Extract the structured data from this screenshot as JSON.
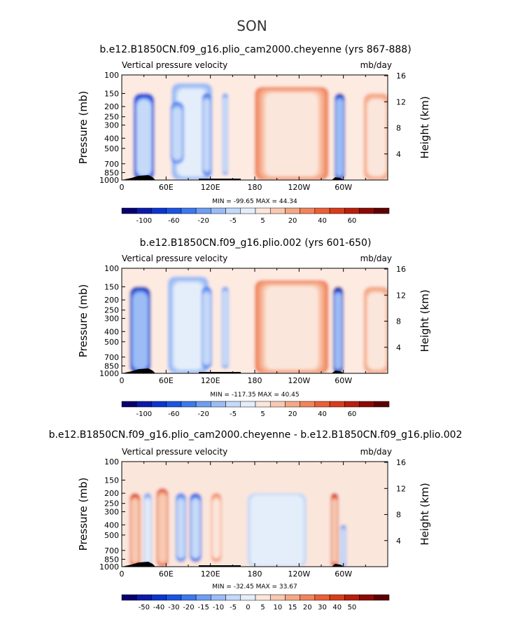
{
  "figure": {
    "season": "SON"
  },
  "panels": [
    {
      "title": "b.e12.B1850CN.f09_g16.plio_cam2000.cheyenne (yrs 867-888)",
      "variable": "Vertical pressure velocity",
      "units": "mb/day",
      "stats": "MIN = -99.65   MAX =  44.34"
    },
    {
      "title": "b.e12.B1850CN.f09_g16.plio.002 (yrs 601-650)",
      "variable": "Vertical pressure velocity",
      "units": "mb/day",
      "stats": "MIN = -117.35   MAX =  40.45"
    },
    {
      "title": "b.e12.B1850CN.f09_g16.plio_cam2000.cheyenne - b.e12.B1850CN.f09_g16.plio.002",
      "variable": "Vertical pressure velocity",
      "units": "mb/day",
      "stats": "MIN = -32.45   MAX =  33.67"
    }
  ],
  "axes": {
    "ylabel": "Pressure (mb)",
    "y2label": "Height (km)",
    "xticks": [
      "0",
      "60E",
      "120E",
      "180",
      "120W",
      "60W"
    ],
    "yticks": [
      "100",
      "150",
      "200",
      "250",
      "300",
      "400",
      "500",
      "700",
      "850",
      "1000"
    ],
    "y2ticks": [
      "16",
      "12",
      "8",
      "4"
    ]
  },
  "colorbars": [
    {
      "labels": [
        "-100",
        "-60",
        "-20",
        "-5",
        "5",
        "20",
        "40",
        "60"
      ],
      "colors": [
        "#08006e",
        "#0b1aa8",
        "#0c35d0",
        "#1a54e0",
        "#3d78ec",
        "#6e9ef2",
        "#9bbcf5",
        "#c5d9f8",
        "#e4eefa",
        "#fbe6dc",
        "#f8c9b1",
        "#f5a886",
        "#f1845c",
        "#ec5f36",
        "#d73d1b",
        "#b81f0c",
        "#8c0a04",
        "#5e0000"
      ]
    },
    {
      "labels": [
        "-100",
        "-60",
        "-20",
        "-5",
        "5",
        "20",
        "40",
        "60"
      ],
      "colors": [
        "#08006e",
        "#0b1aa8",
        "#0c35d0",
        "#1a54e0",
        "#3d78ec",
        "#6e9ef2",
        "#9bbcf5",
        "#c5d9f8",
        "#e4eefa",
        "#fbe6dc",
        "#f8c9b1",
        "#f5a886",
        "#f1845c",
        "#ec5f36",
        "#d73d1b",
        "#b81f0c",
        "#8c0a04",
        "#5e0000"
      ]
    },
    {
      "labels": [
        "-50",
        "-40",
        "-30",
        "-20",
        "-15",
        "-10",
        "-5",
        "0",
        "5",
        "10",
        "15",
        "20",
        "30",
        "40",
        "50"
      ],
      "colors": [
        "#08006e",
        "#0b1aa8",
        "#0c35d0",
        "#1a54e0",
        "#3d78ec",
        "#6e9ef2",
        "#9bbcf5",
        "#c5d9f8",
        "#e4eefa",
        "#fbe6dc",
        "#f8c9b1",
        "#f5a886",
        "#f1845c",
        "#ec5f36",
        "#d73d1b",
        "#b81f0c",
        "#8c0a04",
        "#5e0000"
      ]
    }
  ],
  "chart_data": [
    {
      "type": "heatmap",
      "title": "b.e12.B1850CN.f09_g16.plio_cam2000.cheyenne (yrs 867-888)",
      "subtitle": "Vertical pressure velocity (mb/day), SON",
      "x_range_deg": [
        0,
        360
      ],
      "y_range_mb": [
        1000,
        100
      ],
      "min": -99.65,
      "max": 44.34,
      "features": [
        {
          "lon": 30,
          "width": 28,
          "pmin": 150,
          "pmax": 1000,
          "value": -60
        },
        {
          "lon": 95,
          "width": 55,
          "pmin": 120,
          "pmax": 1000,
          "value": -25
        },
        {
          "lon": 75,
          "width": 18,
          "pmin": 180,
          "pmax": 700,
          "value": -40
        },
        {
          "lon": 115,
          "width": 12,
          "pmin": 150,
          "pmax": 900,
          "value": -45
        },
        {
          "lon": 140,
          "width": 8,
          "pmin": 150,
          "pmax": 900,
          "value": -35
        },
        {
          "lon": 230,
          "width": 100,
          "pmin": 130,
          "pmax": 1000,
          "value": 30
        },
        {
          "lon": 295,
          "width": 14,
          "pmin": 150,
          "pmax": 1000,
          "value": -70
        },
        {
          "lon": 345,
          "width": 35,
          "pmin": 150,
          "pmax": 1000,
          "value": 25
        }
      ]
    },
    {
      "type": "heatmap",
      "title": "b.e12.B1850CN.f09_g16.plio.002 (yrs 601-650)",
      "subtitle": "Vertical pressure velocity (mb/day), SON",
      "x_range_deg": [
        0,
        360
      ],
      "y_range_mb": [
        1000,
        100
      ],
      "min": -117.35,
      "max": 40.45,
      "features": [
        {
          "lon": 25,
          "width": 28,
          "pmin": 150,
          "pmax": 1000,
          "value": -65
        },
        {
          "lon": 90,
          "width": 55,
          "pmin": 120,
          "pmax": 1000,
          "value": -25
        },
        {
          "lon": 115,
          "width": 14,
          "pmin": 150,
          "pmax": 900,
          "value": -40
        },
        {
          "lon": 140,
          "width": 10,
          "pmin": 150,
          "pmax": 900,
          "value": -35
        },
        {
          "lon": 230,
          "width": 100,
          "pmin": 130,
          "pmax": 1000,
          "value": 30
        },
        {
          "lon": 293,
          "width": 14,
          "pmin": 150,
          "pmax": 1000,
          "value": -75
        },
        {
          "lon": 345,
          "width": 35,
          "pmin": 150,
          "pmax": 1000,
          "value": 25
        }
      ]
    },
    {
      "type": "heatmap",
      "title": "b.e12.B1850CN.f09_g16.plio_cam2000.cheyenne - b.e12.B1850CN.f09_g16.plio.002",
      "subtitle": "Vertical pressure velocity (mb/day), SON, difference",
      "x_range_deg": [
        0,
        360
      ],
      "y_range_mb": [
        1000,
        100
      ],
      "min": -32.45,
      "max": 33.67,
      "features": [
        {
          "lon": 18,
          "width": 14,
          "pmin": 200,
          "pmax": 1000,
          "value": 22
        },
        {
          "lon": 35,
          "width": 10,
          "pmin": 200,
          "pmax": 1000,
          "value": -12
        },
        {
          "lon": 55,
          "width": 16,
          "pmin": 180,
          "pmax": 1000,
          "value": 20
        },
        {
          "lon": 80,
          "width": 14,
          "pmin": 200,
          "pmax": 900,
          "value": -18
        },
        {
          "lon": 100,
          "width": 16,
          "pmin": 200,
          "pmax": 900,
          "value": -22
        },
        {
          "lon": 128,
          "width": 14,
          "pmin": 200,
          "pmax": 900,
          "value": 12
        },
        {
          "lon": 210,
          "width": 80,
          "pmin": 200,
          "pmax": 1000,
          "value": -5
        },
        {
          "lon": 288,
          "width": 10,
          "pmin": 200,
          "pmax": 1000,
          "value": 25
        },
        {
          "lon": 300,
          "width": 8,
          "pmin": 400,
          "pmax": 1000,
          "value": -15
        }
      ]
    }
  ]
}
